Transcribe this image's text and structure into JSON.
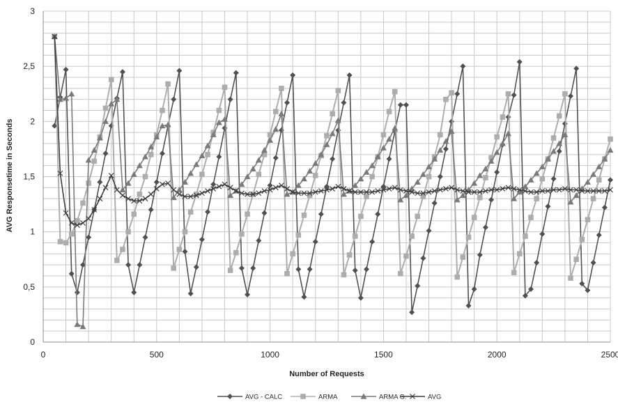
{
  "chart_data": {
    "type": "line",
    "xlabel": "Number of Requests",
    "ylabel": "AVG Responsetime in Seconds",
    "xlim": [
      0,
      2500
    ],
    "ylim": [
      0,
      3
    ],
    "xticks": [
      0,
      500,
      1000,
      1500,
      2000,
      2500
    ],
    "yticks": [
      0,
      0.5,
      1,
      1.5,
      2,
      2.5,
      3
    ],
    "xtick_labels": [
      "0",
      "500",
      "1000",
      "1500",
      "2000",
      "2500"
    ],
    "ytick_labels": [
      "0",
      "0,5",
      "1",
      "1,5",
      "2",
      "2,5",
      "3"
    ],
    "grid": true,
    "legend_position": "bottom",
    "series": [
      {
        "name": "AVG - CALC",
        "color": "#505050",
        "marker": "diamond",
        "x": [
          50,
          75,
          100,
          125,
          150,
          175,
          200,
          225,
          250,
          275,
          300,
          325,
          350,
          375,
          400,
          425,
          450,
          475,
          500,
          525,
          550,
          575,
          600,
          625,
          650,
          675,
          700,
          725,
          750,
          775,
          800,
          825,
          850,
          875,
          900,
          925,
          950,
          975,
          1000,
          1025,
          1050,
          1075,
          1100,
          1125,
          1150,
          1175,
          1200,
          1225,
          1250,
          1275,
          1300,
          1325,
          1350,
          1375,
          1400,
          1425,
          1450,
          1475,
          1500,
          1525,
          1550,
          1575,
          1600,
          1625,
          1650,
          1675,
          1700,
          1725,
          1750,
          1775,
          1800,
          1825,
          1850,
          1875,
          1900,
          1925,
          1950,
          1975,
          2000,
          2025,
          2050,
          2075,
          2100,
          2125,
          2150,
          2175,
          2200,
          2225,
          2250,
          2275,
          2300,
          2325,
          2350,
          2375,
          2400,
          2425,
          2450,
          2475,
          2500
        ],
        "values": [
          1.96,
          2.22,
          2.47,
          0.62,
          0.45,
          0.7,
          0.95,
          1.2,
          1.45,
          1.71,
          1.96,
          2.21,
          2.45,
          0.7,
          0.45,
          0.7,
          0.95,
          1.2,
          1.45,
          1.71,
          1.96,
          2.2,
          2.46,
          0.82,
          0.44,
          0.68,
          0.93,
          1.18,
          1.43,
          1.68,
          1.94,
          2.2,
          2.44,
          0.67,
          0.43,
          0.67,
          0.92,
          1.17,
          1.42,
          1.67,
          1.92,
          2.17,
          2.42,
          0.66,
          0.41,
          0.66,
          0.91,
          1.16,
          1.41,
          1.66,
          1.92,
          2.17,
          2.42,
          0.65,
          0.4,
          0.66,
          0.91,
          1.16,
          1.41,
          1.66,
          1.91,
          2.15,
          2.15,
          0.27,
          0.51,
          0.76,
          1.01,
          1.26,
          1.5,
          1.75,
          2.0,
          2.25,
          2.5,
          0.33,
          0.48,
          0.79,
          1.04,
          1.29,
          1.54,
          1.79,
          2.04,
          2.24,
          2.54,
          0.42,
          0.48,
          0.72,
          0.98,
          1.23,
          1.48,
          1.73,
          1.98,
          2.23,
          2.48,
          0.53,
          0.47,
          0.72,
          0.97,
          1.22,
          1.47
        ]
      },
      {
        "name": "ARMA",
        "color": "#adadad",
        "marker": "square",
        "x": [
          50,
          75,
          100,
          125,
          150,
          175,
          200,
          225,
          250,
          275,
          300,
          325,
          350,
          375,
          400,
          425,
          450,
          475,
          500,
          525,
          550,
          575,
          600,
          625,
          650,
          675,
          700,
          725,
          750,
          775,
          800,
          825,
          850,
          875,
          900,
          925,
          950,
          975,
          1000,
          1025,
          1050,
          1075,
          1100,
          1125,
          1150,
          1175,
          1200,
          1225,
          1250,
          1275,
          1300,
          1325,
          1350,
          1375,
          1400,
          1425,
          1450,
          1475,
          1500,
          1525,
          1550,
          1575,
          1600,
          1625,
          1650,
          1675,
          1700,
          1725,
          1750,
          1775,
          1800,
          1825,
          1850,
          1875,
          1900,
          1925,
          1950,
          1975,
          2000,
          2025,
          2050,
          2075,
          2100,
          2125,
          2150,
          2175,
          2200,
          2225,
          2250,
          2275,
          2300,
          2325,
          2350,
          2375,
          2400,
          2425,
          2450,
          2475,
          2500
        ],
        "values": [
          2.77,
          0.91,
          0.9,
          0.98,
          1.1,
          1.26,
          1.44,
          1.64,
          1.86,
          2.12,
          2.38,
          0.74,
          0.84,
          1.0,
          1.16,
          1.34,
          1.5,
          1.7,
          1.88,
          2.1,
          2.34,
          0.67,
          0.84,
          1.0,
          1.18,
          1.34,
          1.52,
          1.7,
          1.9,
          2.1,
          2.31,
          0.65,
          0.81,
          0.98,
          1.16,
          1.34,
          1.52,
          1.7,
          1.88,
          2.09,
          2.3,
          0.62,
          0.8,
          0.97,
          1.15,
          1.33,
          1.51,
          1.69,
          1.87,
          2.07,
          2.28,
          0.61,
          0.79,
          0.96,
          1.14,
          1.32,
          1.5,
          1.68,
          1.88,
          2.09,
          2.27,
          0.62,
          0.78,
          0.96,
          1.14,
          1.32,
          1.5,
          1.68,
          1.88,
          2.2,
          2.26,
          0.59,
          0.77,
          0.95,
          1.13,
          1.31,
          1.49,
          1.67,
          1.86,
          2.04,
          2.25,
          0.63,
          0.8,
          0.96,
          1.13,
          1.3,
          1.48,
          1.66,
          1.85,
          2.05,
          2.25,
          0.58,
          0.75,
          0.93,
          1.11,
          1.3,
          1.47,
          1.66,
          1.84
        ]
      },
      {
        "name": "ARMA G.",
        "color": "#7a7a7a",
        "marker": "triangle",
        "x": [
          50,
          75,
          100,
          125,
          150,
          175,
          200,
          225,
          250,
          275,
          300,
          325,
          350,
          375,
          400,
          425,
          450,
          475,
          500,
          525,
          550,
          575,
          600,
          625,
          650,
          675,
          700,
          725,
          750,
          775,
          800,
          825,
          850,
          875,
          900,
          925,
          950,
          975,
          1000,
          1025,
          1050,
          1075,
          1100,
          1125,
          1150,
          1175,
          1200,
          1225,
          1250,
          1275,
          1300,
          1325,
          1350,
          1375,
          1400,
          1425,
          1450,
          1475,
          1500,
          1525,
          1550,
          1575,
          1600,
          1625,
          1650,
          1675,
          1700,
          1725,
          1750,
          1775,
          1800,
          1825,
          1850,
          1875,
          1900,
          1925,
          1950,
          1975,
          2000,
          2025,
          2050,
          2075,
          2100,
          2125,
          2150,
          2175,
          2200,
          2225,
          2250,
          2275,
          2300,
          2325,
          2350,
          2375,
          2400,
          2425,
          2450,
          2475,
          2500
        ],
        "values": [
          2.77,
          2.2,
          2.21,
          2.25,
          0.16,
          0.14,
          1.65,
          1.74,
          1.85,
          2.0,
          2.16,
          2.2,
          1.38,
          1.44,
          1.52,
          1.6,
          1.68,
          1.77,
          1.86,
          1.96,
          1.97,
          1.31,
          1.38,
          1.45,
          1.53,
          1.61,
          1.69,
          1.78,
          1.88,
          1.99,
          2.02,
          1.33,
          1.37,
          1.43,
          1.5,
          1.57,
          1.65,
          1.74,
          1.83,
          1.93,
          2.07,
          1.34,
          1.36,
          1.42,
          1.48,
          1.55,
          1.62,
          1.7,
          1.79,
          1.89,
          2.01,
          1.34,
          1.37,
          1.42,
          1.48,
          1.54,
          1.6,
          1.68,
          1.76,
          1.84,
          1.94,
          1.29,
          1.33,
          1.39,
          1.45,
          1.52,
          1.59,
          1.66,
          1.74,
          1.82,
          1.91,
          1.29,
          1.33,
          1.38,
          1.44,
          1.51,
          1.57,
          1.64,
          1.72,
          1.8,
          1.89,
          1.3,
          1.36,
          1.41,
          1.47,
          1.53,
          1.59,
          1.66,
          1.73,
          1.8,
          1.88,
          1.27,
          1.33,
          1.39,
          1.45,
          1.52,
          1.59,
          1.66,
          1.74
        ]
      },
      {
        "name": "AVG",
        "color": "#3c3c3c",
        "marker": "x",
        "x": [
          50,
          75,
          100,
          125,
          150,
          175,
          200,
          225,
          250,
          275,
          300,
          325,
          350,
          375,
          400,
          425,
          450,
          475,
          500,
          525,
          550,
          575,
          600,
          625,
          650,
          675,
          700,
          725,
          750,
          775,
          800,
          825,
          850,
          875,
          900,
          925,
          950,
          975,
          1000,
          1025,
          1050,
          1075,
          1100,
          1125,
          1150,
          1175,
          1200,
          1225,
          1250,
          1275,
          1300,
          1325,
          1350,
          1375,
          1400,
          1425,
          1450,
          1475,
          1500,
          1525,
          1550,
          1575,
          1600,
          1625,
          1650,
          1675,
          1700,
          1725,
          1750,
          1775,
          1800,
          1825,
          1850,
          1875,
          1900,
          1925,
          1950,
          1975,
          2000,
          2025,
          2050,
          2075,
          2100,
          2125,
          2150,
          2175,
          2200,
          2225,
          2250,
          2275,
          2300,
          2325,
          2350,
          2375,
          2400,
          2425,
          2450,
          2475,
          2500
        ],
        "values": [
          2.77,
          1.53,
          1.17,
          1.08,
          1.06,
          1.08,
          1.12,
          1.2,
          1.3,
          1.4,
          1.51,
          1.38,
          1.33,
          1.3,
          1.28,
          1.28,
          1.3,
          1.34,
          1.39,
          1.43,
          1.44,
          1.38,
          1.34,
          1.32,
          1.32,
          1.33,
          1.35,
          1.37,
          1.39,
          1.41,
          1.43,
          1.4,
          1.37,
          1.35,
          1.34,
          1.34,
          1.35,
          1.37,
          1.38,
          1.4,
          1.42,
          1.39,
          1.36,
          1.35,
          1.35,
          1.35,
          1.36,
          1.37,
          1.38,
          1.39,
          1.41,
          1.39,
          1.37,
          1.36,
          1.36,
          1.36,
          1.36,
          1.37,
          1.38,
          1.39,
          1.4,
          1.38,
          1.37,
          1.36,
          1.35,
          1.35,
          1.36,
          1.37,
          1.38,
          1.39,
          1.4,
          1.38,
          1.37,
          1.36,
          1.36,
          1.36,
          1.37,
          1.38,
          1.38,
          1.39,
          1.4,
          1.39,
          1.38,
          1.37,
          1.36,
          1.36,
          1.37,
          1.37,
          1.38,
          1.38,
          1.39,
          1.38,
          1.38,
          1.37,
          1.37,
          1.37,
          1.37,
          1.37,
          1.38
        ]
      }
    ]
  }
}
